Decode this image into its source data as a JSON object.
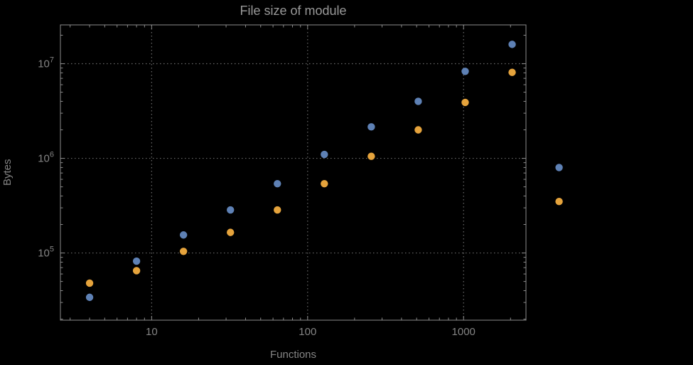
{
  "chart_data": {
    "type": "scatter",
    "title": "File size of module",
    "xlabel": "Functions",
    "ylabel": "Bytes",
    "x_scale": "log",
    "y_scale": "log",
    "grid": true,
    "legend": "none",
    "x": [
      4,
      8,
      16,
      32,
      64,
      128,
      256,
      512,
      1024,
      2048,
      4096
    ],
    "series": [
      {
        "name": "series-blue",
        "color": "#5e81b5",
        "values": [
          34000,
          82000,
          155000,
          285000,
          540000,
          1100000,
          2150000,
          4000000,
          8300000,
          16000000,
          800000
        ]
      },
      {
        "name": "series-orange",
        "color": "#e5a33c",
        "values": [
          48000,
          65000,
          104000,
          165000,
          285000,
          540000,
          1050000,
          2000000,
          3900000,
          8100000,
          350000
        ]
      }
    ],
    "x_ticks": [
      {
        "value": 10,
        "label": "10"
      },
      {
        "value": 100,
        "label": "100"
      },
      {
        "value": 1000,
        "label": "1000"
      }
    ],
    "y_ticks": [
      {
        "value": 100000,
        "base": "10",
        "exp": "5"
      },
      {
        "value": 1000000,
        "base": "10",
        "exp": "6"
      },
      {
        "value": 10000000,
        "base": "10",
        "exp": "7"
      }
    ],
    "xlim": [
      2.6,
      2512
    ],
    "ylim": [
      19500,
      25700000
    ]
  },
  "theme": {
    "background": "#000000",
    "frame": "#8c8c8c",
    "grid": "#6a6a6a",
    "labels": "#848484",
    "title": "#999999"
  }
}
